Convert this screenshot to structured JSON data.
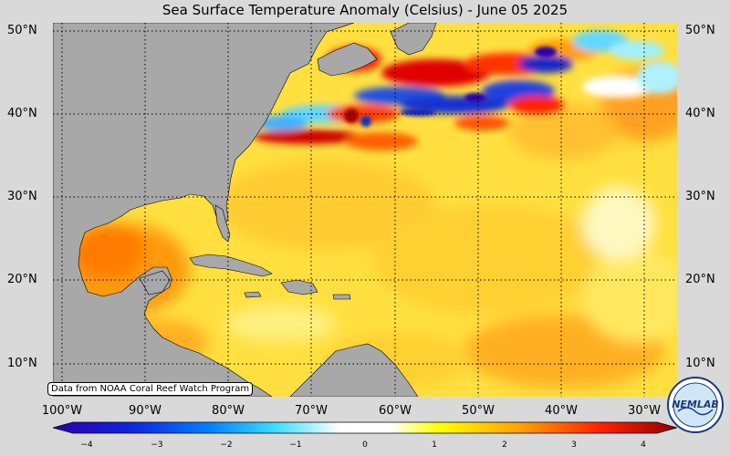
{
  "title": "Sea Surface Temperature Anomaly (Celsius) - June 05 2025",
  "credit": "Data from NOAA Coral Reef Watch Program",
  "latitude_labels": [
    "50°N",
    "40°N",
    "30°N",
    "20°N",
    "10°N"
  ],
  "longitude_labels": [
    "100°W",
    "90°W",
    "80°W",
    "70°W",
    "60°W",
    "50°W",
    "40°W",
    "30°W"
  ],
  "colorbar": {
    "ticks": [
      "−4",
      "−3",
      "−2",
      "−1",
      "0",
      "1",
      "2",
      "3",
      "4"
    ],
    "colors": [
      "#2a00a8",
      "#0050ff",
      "#00c8ff",
      "#ffffff",
      "#ffff00",
      "#ffa000",
      "#ff2800",
      "#a00000"
    ]
  },
  "logo_text": "NEMLAB",
  "colors": {
    "land": "#a8a8a8",
    "ocean_base": "#ffe040",
    "warm": "#ff8c00",
    "hot": "#d40000",
    "cold": "#2030d0",
    "cool": "#60d8ff"
  }
}
